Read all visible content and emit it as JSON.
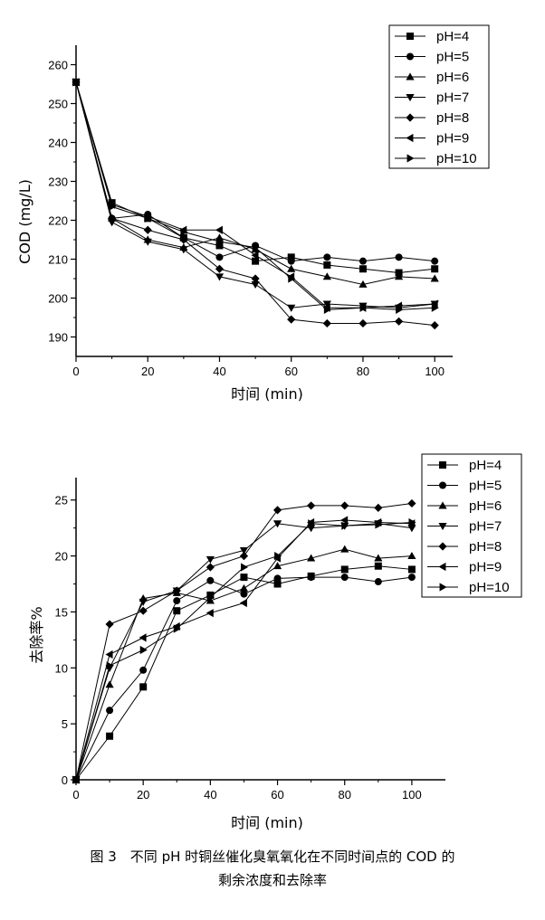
{
  "chart_data": [
    {
      "type": "line",
      "xlabel": "时间 (min)",
      "ylabel": "COD (mg/L)",
      "xlim": [
        0,
        105
      ],
      "ylim": [
        185,
        265
      ],
      "xticks": [
        0,
        20,
        40,
        60,
        80,
        100
      ],
      "yticks": [
        190,
        200,
        210,
        220,
        230,
        240,
        250,
        260
      ],
      "legend_position": "top-right",
      "x": [
        0,
        10,
        20,
        30,
        40,
        50,
        60,
        70,
        80,
        90,
        100
      ],
      "series": [
        {
          "name": "pH=4",
          "marker": "square",
          "values": [
            255.5,
            224.5,
            220.5,
            215.5,
            213.5,
            209.5,
            210.5,
            208.5,
            207.5,
            206.5,
            207.5
          ]
        },
        {
          "name": "pH=5",
          "marker": "circle",
          "values": [
            255.5,
            220.5,
            221.5,
            215.5,
            210.5,
            213.5,
            209.5,
            210.5,
            209.5,
            210.5,
            209.5
          ]
        },
        {
          "name": "pH=6",
          "marker": "triangle-up",
          "values": [
            255.5,
            220.5,
            215.0,
            213.0,
            215.5,
            212.5,
            207.5,
            205.5,
            203.5,
            205.5,
            205.0
          ]
        },
        {
          "name": "pH=7",
          "marker": "triangle-down",
          "values": [
            255.5,
            219.5,
            214.5,
            212.5,
            205.5,
            203.5,
            197.5,
            198.5,
            198.0,
            197.5,
            198.5
          ]
        },
        {
          "name": "pH=8",
          "marker": "diamond",
          "values": [
            255.5,
            220.5,
            217.5,
            215.0,
            207.5,
            205.0,
            194.5,
            193.5,
            193.5,
            194.0,
            193.0
          ]
        },
        {
          "name": "pH=9",
          "marker": "triangle-left",
          "values": [
            255.5,
            224.0,
            221.0,
            217.5,
            217.5,
            211.0,
            205.5,
            197.5,
            197.5,
            198.0,
            198.5
          ]
        },
        {
          "name": "pH=10",
          "marker": "triangle-right",
          "values": [
            255.5,
            223.5,
            220.5,
            217.0,
            214.5,
            213.0,
            205.0,
            197.0,
            197.5,
            197.0,
            197.5
          ]
        }
      ]
    },
    {
      "type": "line",
      "xlabel": "时间 (min)",
      "ylabel": "去除率%",
      "xlim": [
        0,
        110
      ],
      "ylim": [
        0,
        27
      ],
      "xticks": [
        0,
        20,
        40,
        60,
        80,
        100
      ],
      "yticks": [
        0,
        5,
        10,
        15,
        20,
        25
      ],
      "legend_position": "top-right",
      "x": [
        0,
        10,
        20,
        30,
        40,
        50,
        60,
        70,
        80,
        90,
        100
      ],
      "series": [
        {
          "name": "pH=4",
          "marker": "square",
          "values": [
            0,
            3.9,
            8.3,
            15.1,
            16.5,
            18.1,
            17.5,
            18.2,
            18.8,
            19.1,
            18.8
          ]
        },
        {
          "name": "pH=5",
          "marker": "circle",
          "values": [
            0,
            6.2,
            9.8,
            16.0,
            17.8,
            16.6,
            18.0,
            18.1,
            18.1,
            17.7,
            18.1
          ]
        },
        {
          "name": "pH=6",
          "marker": "triangle-up",
          "values": [
            0,
            8.5,
            16.2,
            16.7,
            16.0,
            17.1,
            19.1,
            19.8,
            20.6,
            19.8,
            20.0
          ]
        },
        {
          "name": "pH=7",
          "marker": "triangle-down",
          "values": [
            0,
            10.0,
            15.9,
            16.9,
            19.7,
            20.5,
            22.9,
            22.5,
            22.7,
            22.9,
            22.5
          ]
        },
        {
          "name": "pH=8",
          "marker": "diamond",
          "values": [
            0,
            13.9,
            15.1,
            16.9,
            19.0,
            20.0,
            24.1,
            24.5,
            24.5,
            24.3,
            24.7
          ]
        },
        {
          "name": "pH=9",
          "marker": "triangle-left",
          "values": [
            0,
            11.2,
            12.7,
            13.7,
            14.9,
            15.8,
            19.8,
            23.0,
            23.2,
            23.0,
            22.9
          ]
        },
        {
          "name": "pH=10",
          "marker": "triangle-right",
          "values": [
            0,
            10.2,
            11.6,
            13.5,
            16.3,
            19.0,
            20.0,
            22.9,
            22.7,
            22.8,
            23.0
          ]
        }
      ]
    }
  ],
  "caption": {
    "line1": "图 3　不同 pH 时铜丝催化臭氧氧化在不同时间点的 COD 的",
    "line2": "剩余浓度和去除率"
  }
}
